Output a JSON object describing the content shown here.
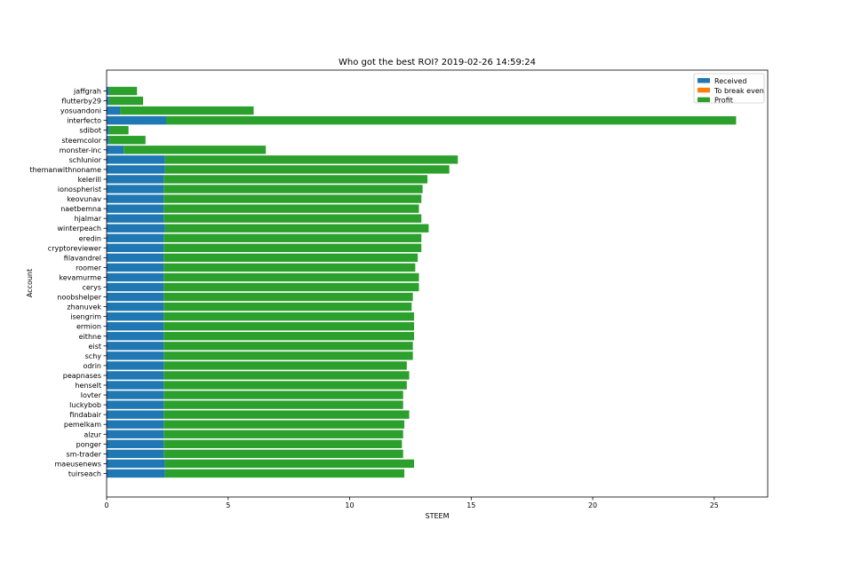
{
  "chart_data": {
    "type": "bar",
    "orientation": "horizontal",
    "stacked": true,
    "title": "Who got the best ROI? 2019-02-26 14:59:24",
    "xlabel": "STEEM",
    "ylabel": "Account",
    "xlim": [
      0,
      27.2
    ],
    "xticks": [
      0,
      5,
      10,
      15,
      20,
      25
    ],
    "grid": false,
    "legend_position": "top-right",
    "categories": [
      "jaffgrah",
      "flutterby29",
      "yosuandoni",
      "interfecto",
      "sdibot",
      "steemcolor",
      "monster-inc",
      "schlunior",
      "themanwithnoname",
      "kelerill",
      "ionospherist",
      "keovunav",
      "naetbemna",
      "hjalmar",
      "winterpeach",
      "eredin",
      "cryptoreviewer",
      "filavandrel",
      "roomer",
      "kevamurme",
      "cerys",
      "noobshelper",
      "zhanuvek",
      "isengrim",
      "ermion",
      "eithne",
      "eist",
      "schy",
      "odrin",
      "peapnases",
      "henselt",
      "lovter",
      "luckybob",
      "findabair",
      "pemelkam",
      "alzur",
      "ponger",
      "sm-trader",
      "maeusenews",
      "tuirseach"
    ],
    "series": [
      {
        "name": "Received",
        "color": "#1f77b4",
        "values": [
          0.1,
          0.1,
          0.55,
          2.45,
          0.1,
          0.1,
          0.7,
          2.4,
          2.4,
          2.35,
          2.35,
          2.35,
          2.35,
          2.35,
          2.4,
          2.35,
          2.35,
          2.35,
          2.35,
          2.35,
          2.35,
          2.35,
          2.35,
          2.35,
          2.35,
          2.35,
          2.35,
          2.35,
          2.35,
          2.35,
          2.35,
          2.35,
          2.35,
          2.35,
          2.35,
          2.35,
          2.35,
          2.35,
          2.4,
          2.4
        ]
      },
      {
        "name": "To break even",
        "color": "#ff7f0e",
        "values": [
          0,
          0,
          0,
          0,
          0,
          0,
          0,
          0,
          0,
          0,
          0,
          0,
          0,
          0,
          0,
          0,
          0,
          0,
          0,
          0,
          0,
          0,
          0,
          0,
          0,
          0,
          0,
          0,
          0,
          0,
          0,
          0,
          0,
          0,
          0,
          0,
          0,
          0,
          0,
          0
        ]
      },
      {
        "name": "Profit",
        "color": "#2ca02c",
        "values": [
          1.15,
          1.4,
          5.5,
          23.45,
          0.8,
          1.5,
          5.85,
          12.05,
          11.7,
          10.85,
          10.65,
          10.6,
          10.5,
          10.6,
          10.85,
          10.6,
          10.6,
          10.45,
          10.35,
          10.5,
          10.5,
          10.25,
          10.2,
          10.3,
          10.3,
          10.3,
          10.25,
          10.25,
          10.0,
          10.1,
          10.0,
          9.85,
          9.85,
          10.1,
          9.9,
          9.85,
          9.8,
          9.85,
          10.25,
          9.85
        ]
      }
    ]
  }
}
